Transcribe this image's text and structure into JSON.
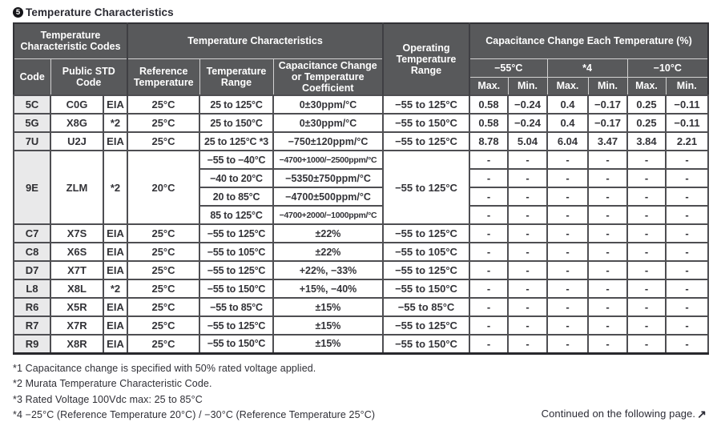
{
  "page": {
    "section_number": "5",
    "title": "Temperature Characteristics",
    "continued_text": "Continued on the following page.",
    "continued_arrow_icon": "↗"
  },
  "table": {
    "headers": {
      "group_codes": "Temperature Characteristic Codes",
      "group_characteristics": "Temperature Characteristics",
      "operating": "Operating Temperature Range",
      "group_cap_change": "Capacitance Change Each Temperature (%)",
      "code": "Code",
      "public_std_code": "Public STD Code",
      "reference_temperature": "Reference Temperature",
      "temperature_range": "Temperature Range",
      "cap_change_or_coef": "Capacitance Change or Temperature Coefficient",
      "temp_points": [
        "−55°C",
        "*4",
        "−10°C"
      ],
      "max_label": "Max.",
      "min_label": "Min."
    },
    "row_groups": [
      {
        "code": "5C",
        "std_code": "C0G",
        "std_org": "EIA",
        "ref_temp": "25°C",
        "op_range": "−55 to 125°C",
        "subrows": [
          {
            "temp_range": "25 to 125°C",
            "coefficient": "0±30ppm/°C",
            "values": [
              "0.58",
              "−0.24",
              "0.4",
              "−0.17",
              "0.25",
              "−0.11"
            ]
          }
        ]
      },
      {
        "code": "5G",
        "std_code": "X8G",
        "std_org": "*2",
        "ref_temp": "25°C",
        "op_range": "−55 to 150°C",
        "subrows": [
          {
            "temp_range": "25 to 150°C",
            "coefficient": "0±30ppm/°C",
            "values": [
              "0.58",
              "−0.24",
              "0.4",
              "−0.17",
              "0.25",
              "−0.11"
            ]
          }
        ]
      },
      {
        "code": "7U",
        "std_code": "U2J",
        "std_org": "EIA",
        "ref_temp": "25°C",
        "op_range": "−55 to 125°C",
        "subrows": [
          {
            "temp_range": "25 to 125°C *3",
            "coefficient": "−750±120ppm/°C",
            "values": [
              "8.78",
              "5.04",
              "6.04",
              "3.47",
              "3.84",
              "2.21"
            ]
          }
        ]
      },
      {
        "code": "9E",
        "std_code": "ZLM",
        "std_org": "*2",
        "ref_temp": "20°C",
        "op_range": "−55 to 125°C",
        "subrows": [
          {
            "temp_range": "−55 to −40°C",
            "coefficient": "−4700+1000/−2500ppm/°C",
            "values": [
              "-",
              "-",
              "-",
              "-",
              "-",
              "-"
            ]
          },
          {
            "temp_range": "−40 to 20°C",
            "coefficient": "−5350±750ppm/°C",
            "values": [
              "-",
              "-",
              "-",
              "-",
              "-",
              "-"
            ]
          },
          {
            "temp_range": "20 to 85°C",
            "coefficient": "−4700±500ppm/°C",
            "values": [
              "-",
              "-",
              "-",
              "-",
              "-",
              "-"
            ]
          },
          {
            "temp_range": "85 to 125°C",
            "coefficient": "−4700+2000/−1000ppm/°C",
            "values": [
              "-",
              "-",
              "-",
              "-",
              "-",
              "-"
            ]
          }
        ]
      },
      {
        "code": "C7",
        "std_code": "X7S",
        "std_org": "EIA",
        "ref_temp": "25°C",
        "op_range": "−55 to 125°C",
        "subrows": [
          {
            "temp_range": "−55 to 125°C",
            "coefficient": "±22%",
            "values": [
              "-",
              "-",
              "-",
              "-",
              "-",
              "-"
            ]
          }
        ]
      },
      {
        "code": "C8",
        "std_code": "X6S",
        "std_org": "EIA",
        "ref_temp": "25°C",
        "op_range": "−55 to 105°C",
        "subrows": [
          {
            "temp_range": "−55 to 105°C",
            "coefficient": "±22%",
            "values": [
              "-",
              "-",
              "-",
              "-",
              "-",
              "-"
            ]
          }
        ]
      },
      {
        "code": "D7",
        "std_code": "X7T",
        "std_org": "EIA",
        "ref_temp": "25°C",
        "op_range": "−55 to 125°C",
        "subrows": [
          {
            "temp_range": "−55 to 125°C",
            "coefficient": "+22%, −33%",
            "values": [
              "-",
              "-",
              "-",
              "-",
              "-",
              "-"
            ]
          }
        ]
      },
      {
        "code": "L8",
        "std_code": "X8L",
        "std_org": "*2",
        "ref_temp": "25°C",
        "op_range": "−55 to 150°C",
        "subrows": [
          {
            "temp_range": "−55 to 150°C",
            "coefficient": "+15%, −40%",
            "values": [
              "-",
              "-",
              "-",
              "-",
              "-",
              "-"
            ]
          }
        ]
      },
      {
        "code": "R6",
        "std_code": "X5R",
        "std_org": "EIA",
        "ref_temp": "25°C",
        "op_range": "−55 to 85°C",
        "subrows": [
          {
            "temp_range": "−55 to 85°C",
            "coefficient": "±15%",
            "values": [
              "-",
              "-",
              "-",
              "-",
              "-",
              "-"
            ]
          }
        ]
      },
      {
        "code": "R7",
        "std_code": "X7R",
        "std_org": "EIA",
        "ref_temp": "25°C",
        "op_range": "−55 to 125°C",
        "subrows": [
          {
            "temp_range": "−55 to 125°C",
            "coefficient": "±15%",
            "values": [
              "-",
              "-",
              "-",
              "-",
              "-",
              "-"
            ]
          }
        ]
      },
      {
        "code": "R9",
        "std_code": "X8R",
        "std_org": "EIA",
        "ref_temp": "25°C",
        "op_range": "−55 to 150°C",
        "subrows": [
          {
            "temp_range": "−55 to 150°C",
            "coefficient": "±15%",
            "values": [
              "-",
              "-",
              "-",
              "-",
              "-",
              "-"
            ]
          }
        ]
      }
    ]
  },
  "footnotes": [
    "*1 Capacitance change is specified with 50% rated voltage applied.",
    "*2 Murata Temperature Characteristic Code.",
    "*3 Rated Voltage 100Vdc max: 25 to 85°C",
    "*4 −25°C (Reference Temperature 20°C) / −30°C (Reference Temperature 25°C)"
  ],
  "colors": {
    "header_bg": "#58595b",
    "header_text": "#ffffff",
    "code_column_bg": "#e9e9ea",
    "border_dark": "#4e4e52",
    "body_text": "#333338"
  }
}
